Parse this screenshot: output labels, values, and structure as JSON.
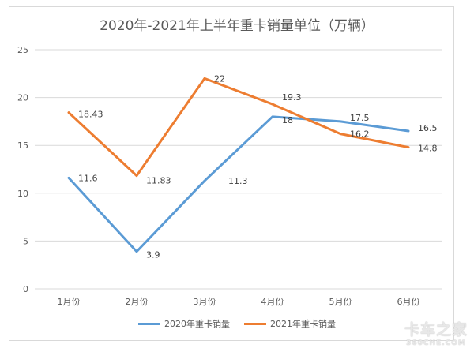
{
  "chart_data": {
    "type": "line",
    "title": "2020年-2021年上半年重卡销量单位（万辆）",
    "categories": [
      "1月份",
      "2月份",
      "3月份",
      "4月份",
      "5月份",
      "6月份"
    ],
    "ylim": [
      0,
      25
    ],
    "yticks": [
      0,
      5,
      10,
      15,
      20,
      25
    ],
    "grid": true,
    "legend_position": "bottom",
    "series": [
      {
        "name": "2020年重卡销量",
        "color": "#5b9bd5",
        "values": [
          11.6,
          3.9,
          11.3,
          18,
          17.5,
          16.5
        ],
        "labels": [
          "11.6",
          "3.9",
          "11.3",
          "18",
          "17.5",
          "16.5"
        ]
      },
      {
        "name": "2021年重卡销量",
        "color": "#ed7d31",
        "values": [
          18.43,
          11.83,
          22,
          19.3,
          16.2,
          14.8
        ],
        "labels": [
          "18.43",
          "11.83",
          "22",
          "19.3",
          "16.2",
          "14.8"
        ]
      }
    ]
  },
  "watermark": {
    "line1": "卡车之家",
    "line2": "360CHE.COM"
  }
}
